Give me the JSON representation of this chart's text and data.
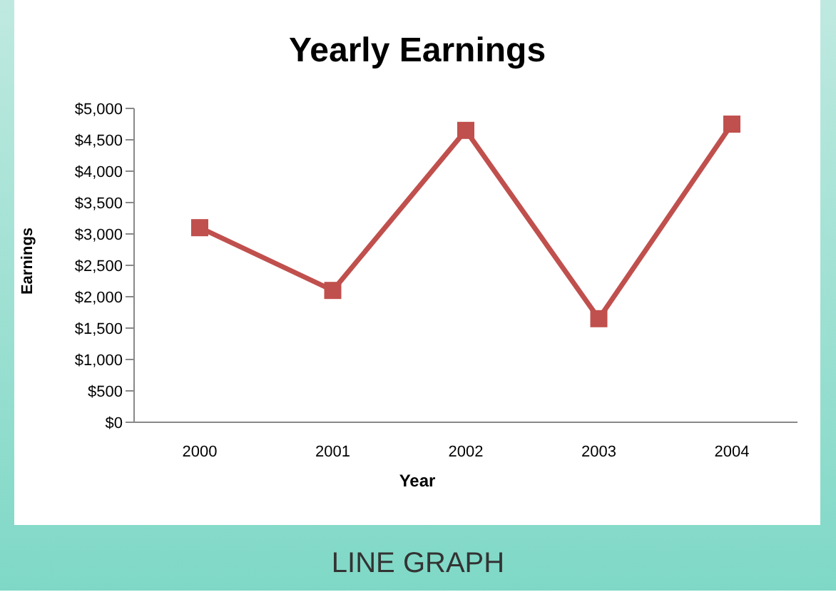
{
  "chart_data": {
    "type": "line",
    "title": "Yearly Earnings",
    "xlabel": "Year",
    "ylabel": "Earnings",
    "categories": [
      "2000",
      "2001",
      "2002",
      "2003",
      "2004"
    ],
    "series": [
      {
        "color": "#c0504d",
        "values": [
          3100,
          2100,
          4650,
          1650,
          4750
        ]
      }
    ],
    "ylim": [
      0,
      5000
    ],
    "yticks": [
      {
        "value": 0,
        "label": "$0"
      },
      {
        "value": 500,
        "label": "$500"
      },
      {
        "value": 1000,
        "label": "$1,000"
      },
      {
        "value": 1500,
        "label": "$1,500"
      },
      {
        "value": 2000,
        "label": "$2,000"
      },
      {
        "value": 2500,
        "label": "$2,500"
      },
      {
        "value": 3000,
        "label": "$3,000"
      },
      {
        "value": 3500,
        "label": "$3,500"
      },
      {
        "value": 4000,
        "label": "$4,000"
      },
      {
        "value": 4500,
        "label": "$4,500"
      },
      {
        "value": 5000,
        "label": "$5,000"
      }
    ],
    "grid": false,
    "marker": "square",
    "line_style": "solid",
    "annotations": [
      "LINE GRAPH"
    ]
  }
}
